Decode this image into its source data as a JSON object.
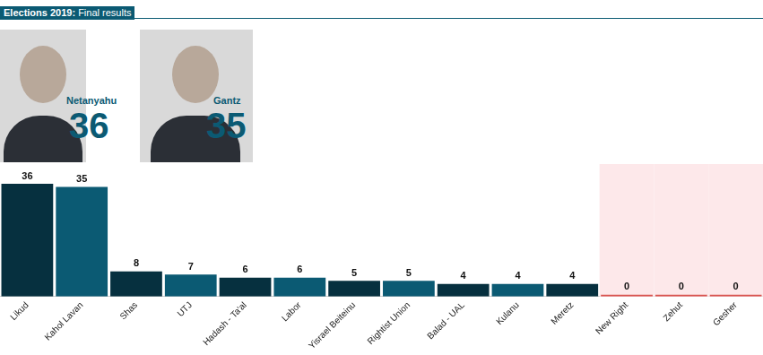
{
  "header": {
    "title": "Elections 2019: Final results"
  },
  "leaders": [
    {
      "name": "Netanyahu",
      "seats": 36
    },
    {
      "name": "Gantz",
      "seats": 35
    }
  ],
  "chart_data": {
    "type": "bar",
    "categories": [
      "Likud",
      "Kahol Lavan",
      "Shas",
      "UTJ",
      "Hadash - Ta'al",
      "Labor",
      "Yisrael Beiteinu",
      "Rightist Union",
      "Balad - UAL",
      "Kulanu",
      "Meretz",
      "New Right",
      "Zehut",
      "Gesher"
    ],
    "values": [
      36,
      35,
      8,
      7,
      6,
      6,
      5,
      5,
      4,
      4,
      4,
      0,
      0,
      0
    ],
    "colors": [
      "#06303f",
      "#0b5a73",
      "#06303f",
      "#0b5a73",
      "#06303f",
      "#0b5a73",
      "#06303f",
      "#0b5a73",
      "#06303f",
      "#0b5a73",
      "#06303f",
      "#d9534f",
      "#d9534f",
      "#d9534f"
    ],
    "ylim": [
      0,
      36
    ],
    "grid": false,
    "data_labels": true,
    "tick_labels": "x"
  }
}
